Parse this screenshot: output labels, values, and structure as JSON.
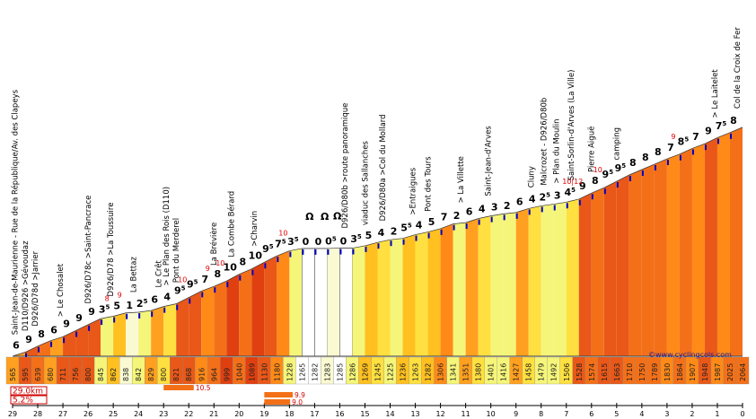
{
  "colors": {
    "c0": "#ffffff",
    "c2": "#fafad2",
    "c3": "#f5f57a",
    "c4": "#ffe040",
    "c5": "#ffc020",
    "c6": "#ffa020",
    "c7": "#ff8a18",
    "c8": "#f47018",
    "c9": "#e95818",
    "c10": "#e04010",
    "marker": "#0000c0",
    "bar": "#f47018"
  },
  "chart_data": {
    "type": "area",
    "title": "",
    "xlabel": "",
    "ylabel": "",
    "x_reversed": true,
    "xlim": [
      29,
      0
    ],
    "ylim": [
      565,
      2075
    ],
    "km_ticks": [
      "29",
      "28",
      "27",
      "26",
      "25",
      "24",
      "23",
      "22",
      "21",
      "20",
      "19",
      "18",
      "17",
      "16",
      "15",
      "14",
      "13",
      "12",
      "11",
      "10",
      "9",
      "8",
      "7",
      "6",
      "5",
      "4",
      "3",
      "2",
      "1",
      "0"
    ],
    "altitudes": [
      "565",
      "595",
      "639",
      "680",
      "711",
      "756",
      "800",
      "845",
      "862",
      "838",
      "842",
      "829",
      "800",
      "821",
      "868",
      "916",
      "964",
      "999",
      "1040",
      "1089",
      "1130",
      "1180",
      "1228",
      "1265",
      "1282",
      "1283",
      "1285",
      "1286",
      "1269",
      "1245",
      "1225",
      "1236",
      "1263",
      "1282",
      "1306",
      "1341",
      "1351",
      "1380",
      "1401",
      "1416",
      "1427",
      "1458",
      "1479",
      "1492",
      "1506",
      "1528",
      "1574",
      "1615",
      "1663",
      "1710",
      "1750",
      "1789",
      "1830",
      "1864",
      "1907",
      "1948",
      "1987",
      "2025",
      "2064"
    ],
    "segments": [
      {
        "from": 29.0,
        "to": 28.5,
        "g": "6",
        "h": "",
        "mx": "",
        "mi": ""
      },
      {
        "from": 28.5,
        "to": 28.0,
        "g": "9",
        "h": "",
        "mx": "",
        "mi": ""
      },
      {
        "from": 28.0,
        "to": 27.5,
        "g": "8",
        "h": "",
        "mx": "",
        "mi": ""
      },
      {
        "from": 27.5,
        "to": 27.0,
        "g": "6",
        "h": "",
        "mx": "",
        "mi": ""
      },
      {
        "from": 27.0,
        "to": 26.5,
        "g": "9",
        "h": "",
        "mx": "",
        "mi": ""
      },
      {
        "from": 26.5,
        "to": 26.0,
        "g": "9",
        "h": "",
        "mx": "",
        "mi": ""
      },
      {
        "from": 26.0,
        "to": 25.5,
        "g": "9",
        "h": "",
        "mx": "",
        "mi": ""
      },
      {
        "from": 25.5,
        "to": 25.0,
        "g": "3",
        "h": "5",
        "mx": "8",
        "mi": ""
      },
      {
        "from": 25.0,
        "to": 24.5,
        "g": "5",
        "h": "",
        "mx": "9",
        "mi": ""
      },
      {
        "from": 24.5,
        "to": 24.0,
        "g": "1",
        "h": "",
        "mx": "",
        "mi": ""
      },
      {
        "from": 24.0,
        "to": 23.5,
        "g": "2",
        "h": "5",
        "mx": "",
        "mi": ""
      },
      {
        "from": 23.5,
        "to": 23.0,
        "g": "6",
        "h": "",
        "mx": "",
        "mi": ""
      },
      {
        "from": 23.0,
        "to": 22.5,
        "g": "4",
        "h": "",
        "mx": "",
        "mi": ""
      },
      {
        "from": 22.5,
        "to": 22.0,
        "g": "9",
        "h": "5",
        "mx": "10",
        "mi": ""
      },
      {
        "from": 22.0,
        "to": 21.5,
        "g": "9",
        "h": "5",
        "mx": "",
        "mi": ""
      },
      {
        "from": 21.5,
        "to": 21.0,
        "g": "7",
        "h": "",
        "mx": "9",
        "mi": ""
      },
      {
        "from": 21.0,
        "to": 20.5,
        "g": "8",
        "h": "",
        "mx": "10",
        "mi": ""
      },
      {
        "from": 20.5,
        "to": 20.0,
        "g": "10",
        "h": "",
        "mx": "",
        "mi": ""
      },
      {
        "from": 20.0,
        "to": 19.5,
        "g": "8",
        "h": "",
        "mx": "",
        "mi": ""
      },
      {
        "from": 19.5,
        "to": 19.0,
        "g": "10",
        "h": "",
        "mx": "",
        "mi": ""
      },
      {
        "from": 19.0,
        "to": 18.5,
        "g": "9",
        "h": "5",
        "mx": "",
        "mi": ""
      },
      {
        "from": 18.5,
        "to": 18.0,
        "g": "7",
        "h": "5",
        "mx": "10",
        "mi": ""
      },
      {
        "from": 18.0,
        "to": 17.5,
        "g": "3",
        "h": "5",
        "mx": "",
        "mi": ""
      },
      {
        "from": 17.5,
        "to": 17.0,
        "g": "0",
        "h": "",
        "mx": "",
        "mi": ""
      },
      {
        "from": 17.0,
        "to": 16.5,
        "g": "0",
        "h": "",
        "mx": "",
        "mi": ""
      },
      {
        "from": 16.5,
        "to": 16.0,
        "g": "0",
        "h": "5",
        "mx": "",
        "mi": ""
      },
      {
        "from": 16.0,
        "to": 15.5,
        "g": "0",
        "h": "",
        "mx": "",
        "mi": ""
      },
      {
        "from": 15.5,
        "to": 15.0,
        "g": "3",
        "h": "5",
        "mx": "",
        "mi": ""
      },
      {
        "from": 15.0,
        "to": 14.5,
        "g": "5",
        "h": "",
        "mx": "",
        "mi": ""
      },
      {
        "from": 14.5,
        "to": 14.0,
        "g": "4",
        "h": "",
        "mx": "",
        "mi": ""
      },
      {
        "from": 14.0,
        "to": 13.5,
        "g": "2",
        "h": "",
        "mx": "",
        "mi": ""
      },
      {
        "from": 13.5,
        "to": 13.0,
        "g": "5",
        "h": "5",
        "mx": "",
        "mi": ""
      },
      {
        "from": 13.0,
        "to": 12.5,
        "g": "4",
        "h": "",
        "mx": "",
        "mi": ""
      },
      {
        "from": 12.5,
        "to": 12.0,
        "g": "5",
        "h": "",
        "mx": "",
        "mi": ""
      },
      {
        "from": 12.0,
        "to": 11.5,
        "g": "7",
        "h": "",
        "mx": "",
        "mi": ""
      },
      {
        "from": 11.5,
        "to": 11.0,
        "g": "2",
        "h": "",
        "mx": "",
        "mi": ""
      },
      {
        "from": 11.0,
        "to": 10.5,
        "g": "6",
        "h": "",
        "mx": "",
        "mi": ""
      },
      {
        "from": 10.5,
        "to": 10.0,
        "g": "4",
        "h": "",
        "mx": "",
        "mi": ""
      },
      {
        "from": 10.0,
        "to": 9.5,
        "g": "3",
        "h": "",
        "mx": "",
        "mi": ""
      },
      {
        "from": 9.5,
        "to": 9.0,
        "g": "2",
        "h": "",
        "mx": "",
        "mi": ""
      },
      {
        "from": 9.0,
        "to": 8.5,
        "g": "6",
        "h": "",
        "mx": "",
        "mi": ""
      },
      {
        "from": 8.5,
        "to": 8.0,
        "g": "4",
        "h": "",
        "mx": "",
        "mi": ""
      },
      {
        "from": 8.0,
        "to": 7.5,
        "g": "2",
        "h": "5",
        "mx": "",
        "mi": ""
      },
      {
        "from": 7.5,
        "to": 7.0,
        "g": "3",
        "h": "",
        "mx": "",
        "mi": ""
      },
      {
        "from": 7.0,
        "to": 6.5,
        "g": "4",
        "h": "5",
        "mx": "10",
        "mi": "12"
      },
      {
        "from": 6.5,
        "to": 6.0,
        "g": "9",
        "h": "",
        "mx": "",
        "mi": ""
      },
      {
        "from": 6.0,
        "to": 5.5,
        "g": "8",
        "h": "",
        "mx": "10",
        "mi": ""
      },
      {
        "from": 5.5,
        "to": 5.0,
        "g": "9",
        "h": "5",
        "mx": "",
        "mi": ""
      },
      {
        "from": 5.0,
        "to": 4.5,
        "g": "9",
        "h": "5",
        "mx": "",
        "mi": ""
      },
      {
        "from": 4.5,
        "to": 4.0,
        "g": "8",
        "h": "",
        "mx": "",
        "mi": ""
      },
      {
        "from": 4.0,
        "to": 3.5,
        "g": "8",
        "h": "",
        "mx": "",
        "mi": ""
      },
      {
        "from": 3.5,
        "to": 3.0,
        "g": "8",
        "h": "",
        "mx": "",
        "mi": ""
      },
      {
        "from": 3.0,
        "to": 2.5,
        "g": "7",
        "h": "",
        "mx": "9",
        "mi": ""
      },
      {
        "from": 2.5,
        "to": 2.0,
        "g": "8",
        "h": "5",
        "mx": "",
        "mi": ""
      },
      {
        "from": 2.0,
        "to": 1.5,
        "g": "7",
        "h": "",
        "mx": "",
        "mi": ""
      },
      {
        "from": 1.5,
        "to": 1.0,
        "g": "9",
        "h": "",
        "mx": "",
        "mi": ""
      },
      {
        "from": 1.0,
        "to": 0.5,
        "g": "7",
        "h": "5",
        "mx": "",
        "mi": ""
      },
      {
        "from": 0.5,
        "to": 0.0,
        "g": "8",
        "h": "",
        "mx": "",
        "mi": ""
      }
    ],
    "landmarks": [
      {
        "km": 28.8,
        "label": "Saint-Jean-de-Maurienne - Rue de la République/Av. des Clapeys"
      },
      {
        "km": 28.4,
        "label": "D110/D926 >Gévoudaz"
      },
      {
        "km": 28.0,
        "label": "D926/D78d >Jarrier"
      },
      {
        "km": 27.0,
        "label": "> Le Chosalet"
      },
      {
        "km": 25.9,
        "label": "D926/D78c >Saint-Pancrace"
      },
      {
        "km": 25.0,
        "label": "D926/D78 >La Toussuire"
      },
      {
        "km": 24.1,
        "label": "La Bettaz"
      },
      {
        "km": 23.1,
        "label": "Le Crêt"
      },
      {
        "km": 22.8,
        "label": "> Le Plan des Rois (D110)"
      },
      {
        "km": 22.4,
        "label": "Pont du Merderel"
      },
      {
        "km": 20.9,
        "label": "La Brévière"
      },
      {
        "km": 20.2,
        "label": "La Combe Bérard"
      },
      {
        "km": 19.3,
        "label": ">Charvin"
      },
      {
        "km": 15.7,
        "label": "D926/D80b >route panoramique"
      },
      {
        "km": 14.9,
        "label": "viaduc des Sallanches"
      },
      {
        "km": 14.2,
        "label": "D926/D80a >Col du Mollard"
      },
      {
        "km": 13.0,
        "label": ">Entraigues"
      },
      {
        "km": 12.4,
        "label": "Pont des Tours"
      },
      {
        "km": 11.1,
        "label": "> La Villette"
      },
      {
        "km": 10.0,
        "label": "Saint-Jean-d'Arves"
      },
      {
        "km": 8.3,
        "label": "Cluny"
      },
      {
        "km": 7.8,
        "label": "Malcrozet - D926/D80b"
      },
      {
        "km": 7.3,
        "label": "> Plan du Moulin"
      },
      {
        "km": 6.7,
        "label": "Saint-Sorlin-d'Arves (La Ville)"
      },
      {
        "km": 5.9,
        "label": "Pierre Aiguë"
      },
      {
        "km": 4.9,
        "label": "camping"
      },
      {
        "km": 1.0,
        "label": "> Le Laitelet"
      },
      {
        "km": 0.1,
        "label": "Col de la Croix de Fer"
      }
    ],
    "tunnels": [
      {
        "km": 17.2,
        "label": "Ω"
      },
      {
        "km": 16.6,
        "label": "Ω"
      },
      {
        "km": 16.1,
        "label": "Ω"
      }
    ]
  },
  "summary": {
    "distance": "29.0km",
    "avg_gradient": "5.2%",
    "bars": [
      {
        "label": "10.5",
        "value": 10.5,
        "from_km": 23.0
      },
      {
        "label": "9.9",
        "value": 9.9,
        "from_km": 19.0
      },
      {
        "label": "9.0",
        "value": 9.0,
        "from_km": 19.0
      }
    ]
  },
  "credit": "©www.cyclingcols.com"
}
